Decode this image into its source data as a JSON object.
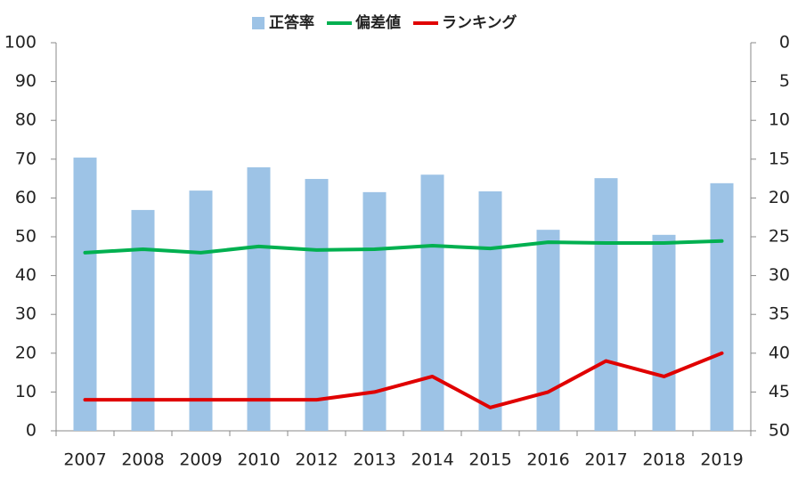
{
  "chart_data": {
    "type": "combo",
    "categories": [
      "2007",
      "2008",
      "2009",
      "2010",
      "2012",
      "2013",
      "2014",
      "2015",
      "2016",
      "2017",
      "2018",
      "2019"
    ],
    "series": [
      {
        "name": "正答率",
        "type": "bar",
        "color": "#9dc3e6",
        "values": [
          70.4,
          56.9,
          61.9,
          67.9,
          64.9,
          61.5,
          66.0,
          61.7,
          51.8,
          65.1,
          50.5,
          63.8
        ]
      },
      {
        "name": "偏差値",
        "type": "line",
        "color": "#00b050",
        "values": [
          45.9,
          46.8,
          45.9,
          47.5,
          46.6,
          46.8,
          47.7,
          47.0,
          48.6,
          48.4,
          48.4,
          48.9
        ]
      },
      {
        "name": "ランキング",
        "type": "line",
        "color": "#e00000",
        "axis": "y2",
        "values": [
          46,
          46,
          46,
          46,
          46,
          45,
          43,
          47,
          45,
          41,
          43,
          40
        ]
      }
    ],
    "ylim": [
      0,
      100
    ],
    "yticks": [
      0,
      10,
      20,
      30,
      40,
      50,
      60,
      70,
      80,
      90,
      100
    ],
    "y2lim": [
      0,
      50
    ],
    "y2ticks": [
      0,
      5,
      10,
      15,
      20,
      25,
      30,
      35,
      40,
      45,
      50
    ],
    "y2_inverted": true,
    "legend": "top",
    "grid": false
  }
}
